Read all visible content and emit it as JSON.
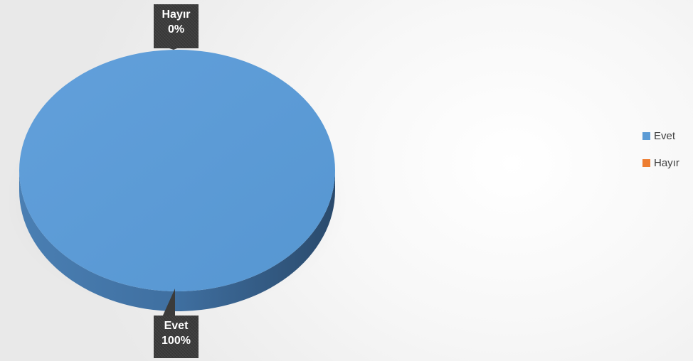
{
  "chart_data": {
    "type": "pie",
    "style": "3d",
    "categories": [
      "Evet",
      "Hayır"
    ],
    "values": [
      100,
      0
    ],
    "data_labels": [
      {
        "category": "Evet",
        "percent": "100%"
      },
      {
        "category": "Hayır",
        "percent": "0%"
      }
    ],
    "colors": [
      "#5B9BD5",
      "#ED7D31"
    ],
    "legend_position": "right",
    "legend": [
      {
        "label": "Evet",
        "color": "#5B9BD5"
      },
      {
        "label": "Hayır",
        "color": "#ED7D31"
      }
    ]
  }
}
